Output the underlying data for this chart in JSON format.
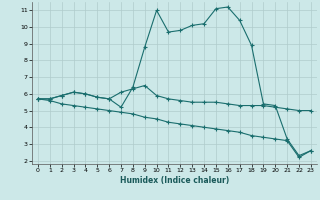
{
  "xlabel": "Humidex (Indice chaleur)",
  "background_color": "#cce8e8",
  "grid_color": "#b0cccc",
  "line_color": "#1a6e6e",
  "xlim": [
    -0.5,
    23.5
  ],
  "ylim": [
    1.8,
    11.5
  ],
  "xticks": [
    0,
    1,
    2,
    3,
    4,
    5,
    6,
    7,
    8,
    9,
    10,
    11,
    12,
    13,
    14,
    15,
    16,
    17,
    18,
    19,
    20,
    21,
    22,
    23
  ],
  "yticks": [
    2,
    3,
    4,
    5,
    6,
    7,
    8,
    9,
    10,
    11
  ],
  "curve1_x": [
    0,
    1,
    2,
    3,
    4,
    5,
    6,
    7,
    8,
    9,
    10,
    11,
    12,
    13,
    14,
    15,
    16,
    17,
    18,
    19,
    20,
    21,
    22,
    23
  ],
  "curve1_y": [
    5.7,
    5.7,
    5.9,
    6.1,
    6.0,
    5.8,
    5.7,
    5.2,
    6.4,
    8.8,
    11.0,
    9.7,
    9.8,
    10.1,
    10.2,
    11.1,
    11.2,
    10.4,
    8.9,
    5.4,
    5.3,
    3.3,
    2.3,
    2.6
  ],
  "curve2_x": [
    0,
    1,
    2,
    3,
    4,
    5,
    6,
    7,
    8,
    9,
    10,
    11,
    12,
    13,
    14,
    15,
    16,
    17,
    18,
    19,
    20,
    21,
    22,
    23
  ],
  "curve2_y": [
    5.7,
    5.7,
    5.9,
    6.1,
    6.0,
    5.8,
    5.7,
    6.1,
    6.3,
    6.5,
    5.9,
    5.7,
    5.6,
    5.5,
    5.5,
    5.5,
    5.4,
    5.3,
    5.3,
    5.3,
    5.2,
    5.1,
    5.0,
    5.0
  ],
  "curve3_x": [
    0,
    1,
    2,
    3,
    4,
    5,
    6,
    7,
    8,
    9,
    10,
    11,
    12,
    13,
    14,
    15,
    16,
    17,
    18,
    19,
    20,
    21,
    22,
    23
  ],
  "curve3_y": [
    5.7,
    5.6,
    5.4,
    5.3,
    5.2,
    5.1,
    5.0,
    4.9,
    4.8,
    4.6,
    4.5,
    4.3,
    4.2,
    4.1,
    4.0,
    3.9,
    3.8,
    3.7,
    3.5,
    3.4,
    3.3,
    3.2,
    2.2,
    2.6
  ]
}
